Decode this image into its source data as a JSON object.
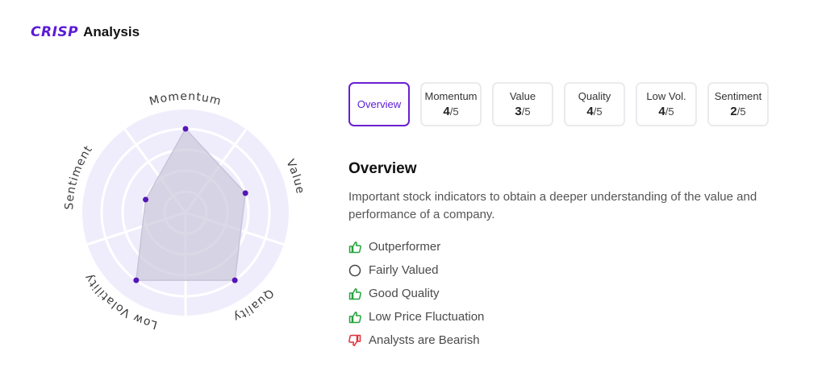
{
  "header": {
    "brand": "CRISP",
    "title": "Analysis"
  },
  "radar": {
    "axes": [
      "Momentum",
      "Value",
      "Quality",
      "Low Volatility",
      "Sentiment"
    ],
    "scores": [
      4,
      3,
      4,
      4,
      2
    ],
    "max": 5,
    "colors": {
      "disc": "#efedfc",
      "ring": "#ffffff",
      "shape": "#c7c4d8",
      "point": "#5516b8"
    }
  },
  "tabs": [
    {
      "label": "Overview",
      "score": null,
      "max": null,
      "active": true
    },
    {
      "label": "Momentum",
      "score": "4",
      "max": "/5",
      "active": false
    },
    {
      "label": "Value",
      "score": "3",
      "max": "/5",
      "active": false
    },
    {
      "label": "Quality",
      "score": "4",
      "max": "/5",
      "active": false
    },
    {
      "label": "Low Vol.",
      "score": "4",
      "max": "/5",
      "active": false
    },
    {
      "label": "Sentiment",
      "score": "2",
      "max": "/5",
      "active": false
    }
  ],
  "overview": {
    "title": "Overview",
    "description": "Important stock indicators to obtain a deeper understanding of the value and performance of a company.",
    "indicators": [
      {
        "text": "Outperformer",
        "icon": "thumbs-up-icon",
        "status": "positive"
      },
      {
        "text": "Fairly Valued",
        "icon": "circle-icon",
        "status": "neutral"
      },
      {
        "text": "Good Quality",
        "icon": "thumbs-up-icon",
        "status": "positive"
      },
      {
        "text": "Low Price Fluctuation",
        "icon": "thumbs-up-icon",
        "status": "positive"
      },
      {
        "text": "Analysts are Bearish",
        "icon": "thumbs-down-icon",
        "status": "negative"
      }
    ]
  },
  "colors": {
    "accent": "#5b1bd6",
    "positive": "#22a33a",
    "negative": "#e0303a",
    "neutral": "#444444"
  }
}
